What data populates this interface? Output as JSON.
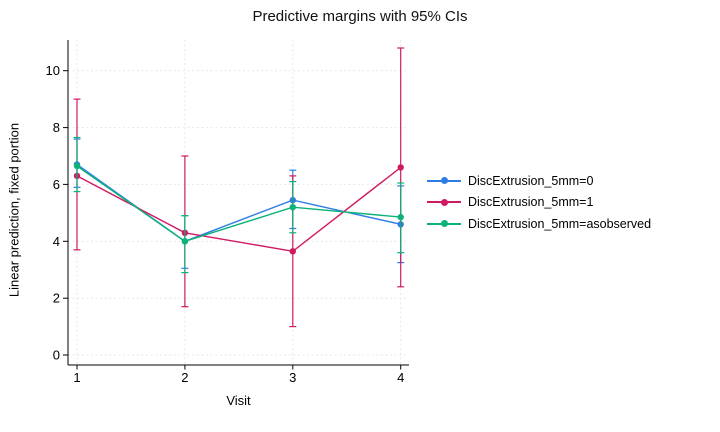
{
  "chart_data": {
    "type": "line",
    "title": "Predictive margins with 95% CIs",
    "xlabel": "Visit",
    "ylabel": "Linear prediction, fixed portion",
    "x": [
      1,
      2,
      3,
      4
    ],
    "xtick_labels": [
      "1",
      "2",
      "3",
      "4"
    ],
    "ytick_values": [
      0,
      2,
      4,
      6,
      8,
      10
    ],
    "ytick_labels": [
      "0",
      "2",
      "4",
      "6",
      "8",
      "10"
    ],
    "xlim": [
      0.917,
      4.077
    ],
    "ylim": [
      -0.35,
      11.08
    ],
    "grid": true,
    "grid_style": "dashed",
    "legend_position": "right-middle",
    "error_bars": "95% CI",
    "series": [
      {
        "name": "DiscExtrusion_5mm=0",
        "color": "#2e7de6",
        "marker": "circle",
        "values": [
          6.7,
          4.0,
          5.45,
          4.6
        ],
        "ci_low": [
          5.9,
          3.05,
          4.45,
          3.25
        ],
        "ci_high": [
          7.6,
          4.9,
          6.5,
          5.95
        ]
      },
      {
        "name": "DiscExtrusion_5mm=1",
        "color": "#d01963",
        "marker": "circle",
        "values": [
          6.3,
          4.3,
          3.65,
          6.6
        ],
        "ci_low": [
          3.7,
          1.7,
          1.0,
          2.4
        ],
        "ci_high": [
          9.0,
          7.0,
          6.3,
          10.8
        ]
      },
      {
        "name": "DiscExtrusion_5mm=asobserved",
        "color": "#0cb379",
        "marker": "circle",
        "values": [
          6.65,
          4.0,
          5.2,
          4.85
        ],
        "ci_low": [
          5.75,
          2.9,
          4.3,
          3.6
        ],
        "ci_high": [
          7.65,
          4.9,
          6.1,
          6.05
        ]
      }
    ]
  },
  "colors": {
    "background": "#ffffff",
    "axis": "#000000",
    "grid": "#e7e7e7",
    "text": "#000000"
  }
}
